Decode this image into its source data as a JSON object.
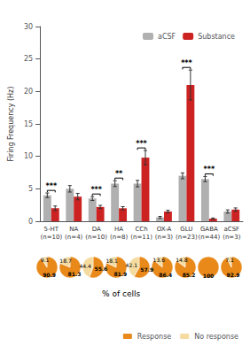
{
  "chart_data": [
    {
      "type": "bar",
      "categories": [
        "5-HT\n(n=10)",
        "NA\n(n=4)",
        "DA\n(n=10)",
        "HA\n(n=8)",
        "CCh\n(n=11)",
        "OX-A\n(n=3)",
        "GLU\n(n=23)",
        "GABA\n(n=44)",
        "aCSF\n(n=3)"
      ],
      "series": [
        {
          "name": "aCSF",
          "color": "#b0b0b0",
          "values": [
            4.0,
            5.0,
            3.5,
            5.8,
            5.8,
            0.6,
            7.0,
            6.5,
            1.5
          ],
          "errors": [
            0.35,
            0.5,
            0.3,
            0.45,
            0.5,
            0.15,
            0.45,
            0.4,
            0.25
          ]
        },
        {
          "name": "Substance",
          "color": "#cc2222",
          "values": [
            2.0,
            3.8,
            2.2,
            2.0,
            9.8,
            1.5,
            21.0,
            0.4,
            1.8
          ],
          "errors": [
            0.35,
            0.5,
            0.25,
            0.25,
            1.1,
            0.2,
            2.3,
            0.1,
            0.25
          ]
        }
      ],
      "ylabel": "Firing Frequency (Hz)",
      "ylim": [
        0,
        30
      ],
      "yticks": [
        0,
        5,
        10,
        15,
        20,
        25,
        30
      ],
      "significance": [
        "***",
        null,
        "***",
        "**",
        "***",
        null,
        "***",
        "***",
        null
      ],
      "grid": false,
      "legend": "upper right"
    },
    {
      "type": "pie",
      "categories": [
        "Response",
        "No response"
      ],
      "colors": [
        "#e8891a",
        "#f5dba0"
      ],
      "series": [
        {
          "values": [
            90.9,
            9.1
          ]
        },
        {
          "values": [
            81.3,
            18.7
          ]
        },
        {
          "values": [
            55.6,
            44.4
          ]
        },
        {
          "values": [
            81.9,
            18.1
          ]
        },
        {
          "values": [
            57.9,
            42.1
          ]
        },
        {
          "values": [
            86.4,
            13.6
          ]
        },
        {
          "values": [
            85.2,
            14.8
          ]
        },
        {
          "values": [
            100,
            null
          ]
        },
        {
          "values": [
            92.9,
            7.1
          ]
        }
      ],
      "data_labels": true,
      "annotations": [
        "% of cells"
      ],
      "legend": "lower right"
    }
  ]
}
